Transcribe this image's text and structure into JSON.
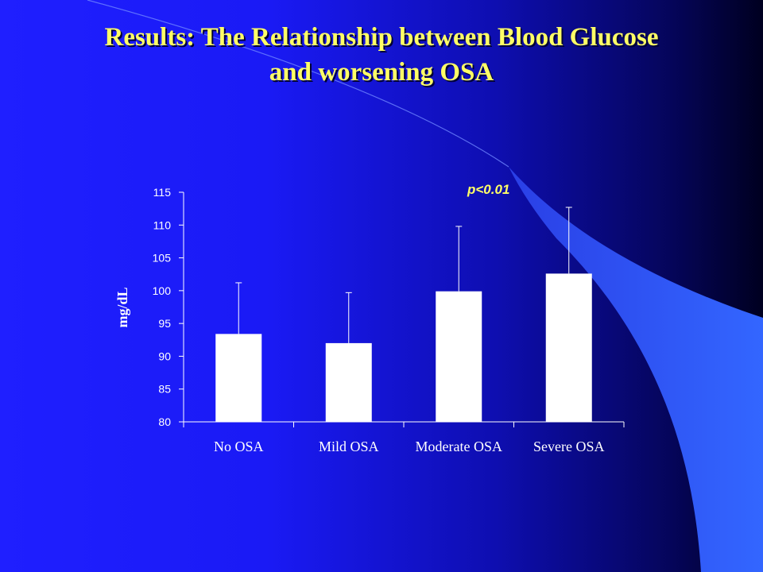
{
  "slide": {
    "title_line_1": "Results:  The Relationship between Blood Glucose",
    "title_line_2": "and worsening OSA"
  },
  "colors": {
    "background_left": "#1f1fff",
    "background_right": "#000033",
    "swoosh": "#3366ff",
    "title": "#ffff66",
    "bars": "#ffffff",
    "axis": "#ffffff",
    "annotation": "#ffff66"
  },
  "chart_data": {
    "type": "bar",
    "title": "",
    "xlabel": "",
    "ylabel": "mg/dL",
    "categories": [
      "No OSA",
      "Mild OSA",
      "Moderate OSA",
      "Severe OSA"
    ],
    "values": [
      93.4,
      92.0,
      99.9,
      102.6
    ],
    "error_upper": [
      101.2,
      99.7,
      109.8,
      112.7
    ],
    "ylim": [
      80,
      115
    ],
    "yticks": [
      80,
      85,
      90,
      95,
      100,
      105,
      110,
      115
    ],
    "annotation": "p<0.01",
    "grid": false,
    "legend": "none"
  }
}
